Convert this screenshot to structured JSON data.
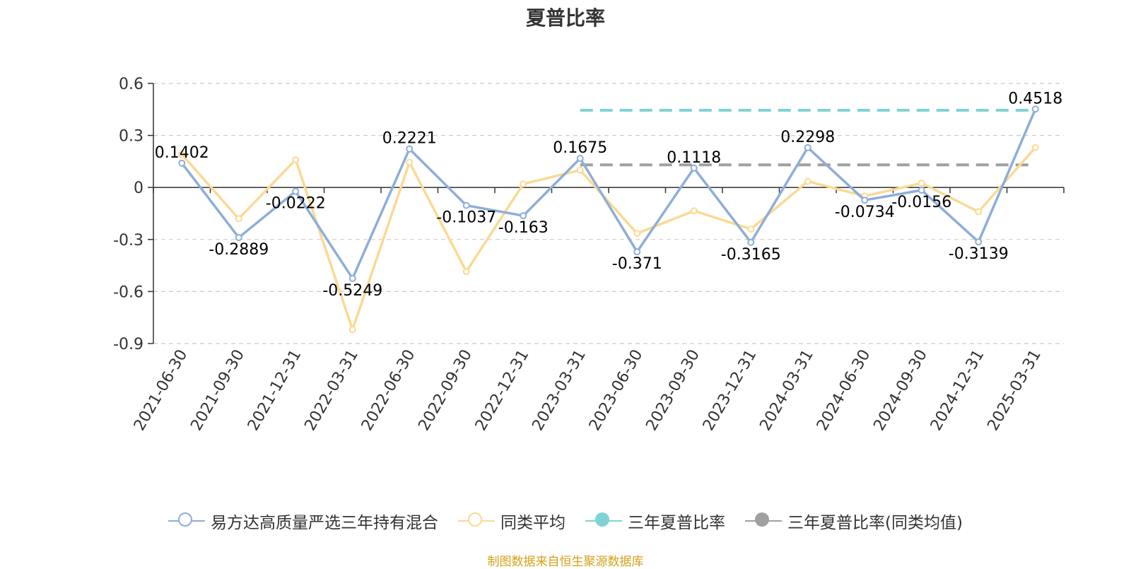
{
  "chart_data": {
    "type": "line",
    "title": "夏普比率",
    "categories": [
      "2021-06-30",
      "2021-09-30",
      "2021-12-31",
      "2022-03-31",
      "2022-06-30",
      "2022-09-30",
      "2022-12-31",
      "2023-03-31",
      "2023-06-30",
      "2023-09-30",
      "2023-12-31",
      "2024-03-31",
      "2024-06-30",
      "2024-09-30",
      "2024-12-31",
      "2025-03-31"
    ],
    "ylim": [
      -0.9,
      0.6
    ],
    "yticks": [
      0.6,
      0.3,
      0,
      -0.3,
      -0.6,
      -0.9
    ],
    "ytick_labels": [
      "0.6",
      "0.3",
      "0",
      "-0.3",
      "-0.6",
      "-0.9"
    ],
    "grid": true,
    "legend_position": "bottom",
    "series": [
      {
        "name": "易方达高质量严选三年持有混合",
        "color": "#8eaed8",
        "values": [
          0.1402,
          -0.2889,
          -0.0222,
          -0.5249,
          0.2221,
          -0.1037,
          -0.163,
          0.1675,
          -0.371,
          0.1118,
          -0.3165,
          0.2298,
          -0.0734,
          -0.0156,
          -0.3139,
          0.4518
        ],
        "labels": [
          "0.1402",
          "-0.2889",
          "-0.0222",
          "-0.5249",
          "0.2221",
          "-0.1037",
          "-0.163",
          "0.1675",
          "-0.371",
          "0.1118",
          "-0.3165",
          "0.2298",
          "-0.0734",
          "-0.0156",
          "-0.3139",
          "0.4518"
        ]
      },
      {
        "name": "同类平均",
        "color": "#fbd993",
        "values": [
          0.19,
          -0.18,
          0.16,
          -0.82,
          0.145,
          -0.485,
          0.02,
          0.1,
          -0.265,
          -0.135,
          -0.24,
          0.035,
          -0.05,
          0.025,
          -0.14,
          0.23
        ]
      },
      {
        "name": "三年夏普比率",
        "color": "#7fd3d3",
        "value": 0.445,
        "x_start": "2023-03-31",
        "x_end": "2025-03-31"
      },
      {
        "name": "三年夏普比率(同类均值)",
        "color": "#a0a0a0",
        "value": 0.13,
        "x_start": "2023-03-31",
        "x_end": "2025-03-31"
      }
    ]
  },
  "source_text": "制图数据来自恒生聚源数据库"
}
